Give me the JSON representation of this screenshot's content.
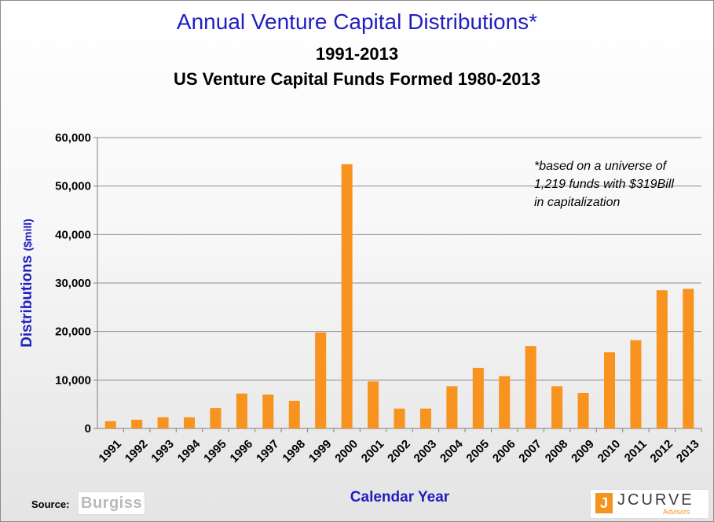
{
  "titles": {
    "main": "Annual Venture Capital  Distributions*",
    "sub1": "1991-2013",
    "sub2": "US Venture Capital Funds Formed 1980-2013"
  },
  "footnote": {
    "line1": "*based on  a universe of",
    "line2": "1,219 funds with  $319Bill",
    "line3": "in capitalization"
  },
  "source": {
    "label": "Source:",
    "logo_text": "Burgiss"
  },
  "branding": {
    "mark": "J",
    "name": "JCURVE",
    "tagline": "Advisors"
  },
  "colors": {
    "bar": "#f7931e",
    "title": "#1f1fbf",
    "axis_title": "#1f1fbf",
    "grid": "#8c8c8c"
  },
  "chart_data": {
    "type": "bar",
    "xlabel": "Calendar Year",
    "ylabel": "Distributions",
    "ylabel_unit": "($mill)",
    "ylim": [
      0,
      60000
    ],
    "yticks": [
      0,
      10000,
      20000,
      30000,
      40000,
      50000,
      60000
    ],
    "ytick_labels": [
      "0",
      "10,000",
      "20,000",
      "30,000",
      "40,000",
      "50,000",
      "60,000"
    ],
    "grid": true,
    "categories": [
      "1991",
      "1992",
      "1993",
      "1994",
      "1995",
      "1996",
      "1997",
      "1998",
      "1999",
      "2000",
      "2001",
      "2002",
      "2003",
      "2004",
      "2005",
      "2006",
      "2007",
      "2008",
      "2009",
      "2010",
      "2011",
      "2012",
      "2013"
    ],
    "values": [
      1500,
      1800,
      2300,
      2300,
      4200,
      7200,
      7000,
      5700,
      19800,
      54500,
      9700,
      4100,
      4100,
      8700,
      12500,
      10800,
      17000,
      8700,
      7300,
      15700,
      18200,
      28500,
      28800
    ]
  }
}
